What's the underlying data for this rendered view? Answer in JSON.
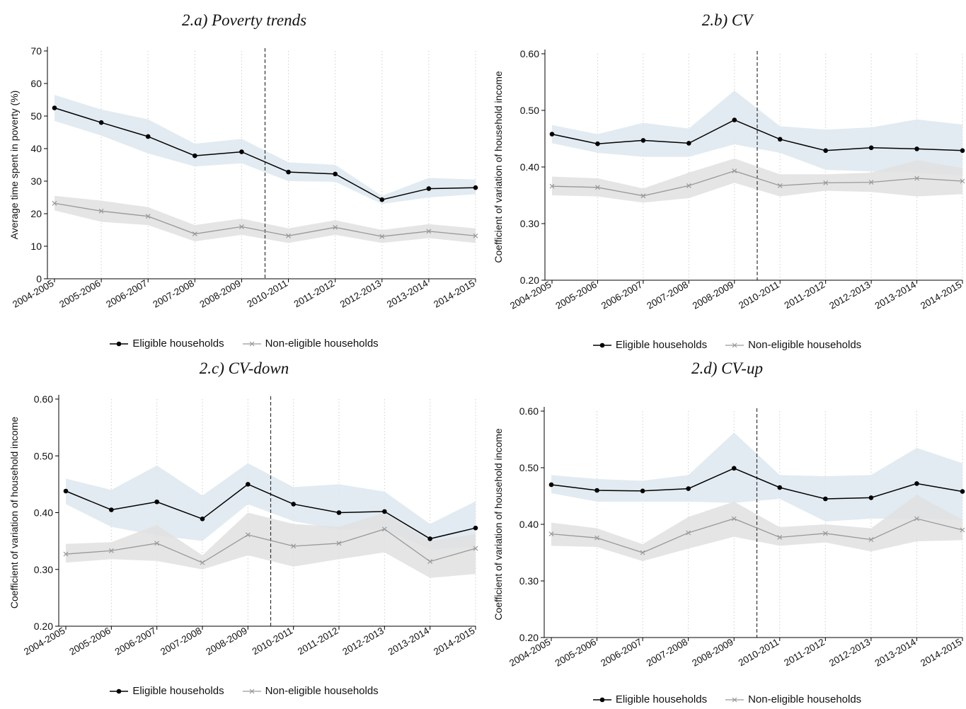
{
  "chart_data": [
    {
      "type": "line",
      "title": "2.a) Poverty trends",
      "ylabel": "Average time spent in poverty (%)",
      "xlabel": "",
      "categories": [
        "2004-2005",
        "2005-2006",
        "2006-2007",
        "2007-2008",
        "2008-2009",
        "2010-2011",
        "2011-2012",
        "2012-2013",
        "2013-2014",
        "2014-2015"
      ],
      "ylim": [
        0,
        70
      ],
      "yticks": [
        "0",
        "10",
        "20",
        "30",
        "40",
        "50",
        "60",
        "70"
      ],
      "vline_between": [
        4,
        5
      ],
      "grid": "vertical dotted",
      "legend_position": "bottom",
      "series": [
        {
          "name": "Eligible households",
          "color": "#000000",
          "marker": "dot",
          "values": [
            52.5,
            48.0,
            43.7,
            37.8,
            39.0,
            32.8,
            32.2,
            24.3,
            27.7,
            28.0
          ],
          "ci_low": [
            48.5,
            44.0,
            38.5,
            34.5,
            35.5,
            30.0,
            29.8,
            23.0,
            25.0,
            26.0
          ],
          "ci_high": [
            56.5,
            52.0,
            49.0,
            41.5,
            43.0,
            35.8,
            35.0,
            25.5,
            31.0,
            30.5
          ]
        },
        {
          "name": "Non-eligible households",
          "color": "#999999",
          "marker": "x",
          "values": [
            23.2,
            20.8,
            19.2,
            13.8,
            16.0,
            13.2,
            15.8,
            13.0,
            14.6,
            13.2
          ],
          "ci_low": [
            21.0,
            17.5,
            16.5,
            11.5,
            13.5,
            11.0,
            13.5,
            11.0,
            12.5,
            11.0
          ],
          "ci_high": [
            25.5,
            24.0,
            22.0,
            16.5,
            18.5,
            15.5,
            18.0,
            15.0,
            16.8,
            15.5
          ]
        }
      ]
    },
    {
      "type": "line",
      "title": "2.b) CV",
      "ylabel": "Coefficient of variation of household income",
      "xlabel": "",
      "categories": [
        "2004-2005",
        "2005-2006",
        "2006-2007",
        "2007-2008",
        "2008-2009",
        "2010-2011",
        "2011-2012",
        "2012-2013",
        "2013-2014",
        "2014-2015"
      ],
      "ylim": [
        0.2,
        0.6
      ],
      "yticks": [
        "0.20",
        "0.30",
        "0.40",
        "0.50",
        "0.60"
      ],
      "vline_between": [
        4,
        5
      ],
      "grid": "vertical dotted",
      "legend_position": "bottom",
      "series": [
        {
          "name": "Eligible households",
          "color": "#000000",
          "marker": "dot",
          "values": [
            0.458,
            0.441,
            0.447,
            0.442,
            0.483,
            0.449,
            0.429,
            0.434,
            0.432,
            0.429
          ],
          "ci_low": [
            0.442,
            0.425,
            0.418,
            0.418,
            0.44,
            0.425,
            0.395,
            0.392,
            0.39,
            0.385
          ],
          "ci_high": [
            0.474,
            0.458,
            0.478,
            0.468,
            0.535,
            0.472,
            0.466,
            0.47,
            0.484,
            0.475
          ]
        },
        {
          "name": "Non-eligible households",
          "color": "#999999",
          "marker": "x",
          "values": [
            0.366,
            0.364,
            0.349,
            0.367,
            0.393,
            0.367,
            0.372,
            0.373,
            0.38,
            0.375
          ],
          "ci_low": [
            0.35,
            0.348,
            0.337,
            0.345,
            0.372,
            0.348,
            0.358,
            0.356,
            0.348,
            0.352
          ],
          "ci_high": [
            0.383,
            0.38,
            0.362,
            0.39,
            0.415,
            0.387,
            0.387,
            0.39,
            0.412,
            0.398
          ]
        }
      ]
    },
    {
      "type": "line",
      "title": "2.c) CV-down",
      "ylabel": "Coefficient of variation of household income",
      "xlabel": "",
      "categories": [
        "2004-2005",
        "2005-2006",
        "2006-2007",
        "2007-2008",
        "2008-2009",
        "2010-2011",
        "2011-2012",
        "2012-2013",
        "2013-2014",
        "2014-2015"
      ],
      "ylim": [
        0.2,
        0.6
      ],
      "yticks": [
        "0.20",
        "0.30",
        "0.40",
        "0.50",
        "0.60"
      ],
      "vline_between": [
        4,
        5
      ],
      "grid": "vertical dotted",
      "legend_position": "bottom",
      "series": [
        {
          "name": "Eligible households",
          "color": "#000000",
          "marker": "dot",
          "values": [
            0.438,
            0.405,
            0.419,
            0.389,
            0.45,
            0.415,
            0.4,
            0.402,
            0.354,
            0.373
          ],
          "ci_low": [
            0.415,
            0.375,
            0.36,
            0.35,
            0.415,
            0.385,
            0.37,
            0.37,
            0.335,
            0.34
          ],
          "ci_high": [
            0.46,
            0.44,
            0.483,
            0.43,
            0.487,
            0.445,
            0.45,
            0.437,
            0.38,
            0.42
          ]
        },
        {
          "name": "Non-eligible households",
          "color": "#999999",
          "marker": "x",
          "values": [
            0.327,
            0.333,
            0.346,
            0.312,
            0.361,
            0.341,
            0.346,
            0.371,
            0.314,
            0.337
          ],
          "ci_low": [
            0.312,
            0.318,
            0.315,
            0.3,
            0.325,
            0.305,
            0.318,
            0.33,
            0.285,
            0.292
          ],
          "ci_high": [
            0.345,
            0.348,
            0.378,
            0.325,
            0.4,
            0.38,
            0.375,
            0.4,
            0.35,
            0.362
          ]
        }
      ]
    },
    {
      "type": "line",
      "title": "2.d) CV-up",
      "ylabel": "Coefficient of variation of household income",
      "xlabel": "",
      "categories": [
        "2004-2005",
        "2005-2006",
        "2006-2007",
        "2007-2008",
        "2008-2009",
        "2010-2011",
        "2011-2012",
        "2012-2013",
        "2013-2014",
        "2014-2015"
      ],
      "ylim": [
        0.2,
        0.6
      ],
      "yticks": [
        "0.20",
        "0.30",
        "0.40",
        "0.50",
        "0.60"
      ],
      "vline_between": [
        4,
        5
      ],
      "grid": "vertical dotted",
      "legend_position": "bottom",
      "series": [
        {
          "name": "Eligible households",
          "color": "#000000",
          "marker": "dot",
          "values": [
            0.47,
            0.46,
            0.459,
            0.463,
            0.499,
            0.465,
            0.445,
            0.447,
            0.472,
            0.458
          ],
          "ci_low": [
            0.455,
            0.44,
            0.44,
            0.44,
            0.438,
            0.445,
            0.405,
            0.41,
            0.41,
            0.408
          ],
          "ci_high": [
            0.487,
            0.48,
            0.477,
            0.487,
            0.562,
            0.487,
            0.485,
            0.487,
            0.535,
            0.508
          ]
        },
        {
          "name": "Non-eligible households",
          "color": "#999999",
          "marker": "x",
          "values": [
            0.383,
            0.376,
            0.35,
            0.385,
            0.41,
            0.377,
            0.384,
            0.373,
            0.41,
            0.39
          ],
          "ci_low": [
            0.362,
            0.36,
            0.335,
            0.357,
            0.378,
            0.362,
            0.368,
            0.352,
            0.37,
            0.372
          ],
          "ci_high": [
            0.403,
            0.393,
            0.365,
            0.413,
            0.44,
            0.395,
            0.4,
            0.393,
            0.452,
            0.408
          ]
        }
      ]
    }
  ],
  "legend": {
    "eligible_label": "Eligible households",
    "non_eligible_label": "Non-eligible households"
  }
}
